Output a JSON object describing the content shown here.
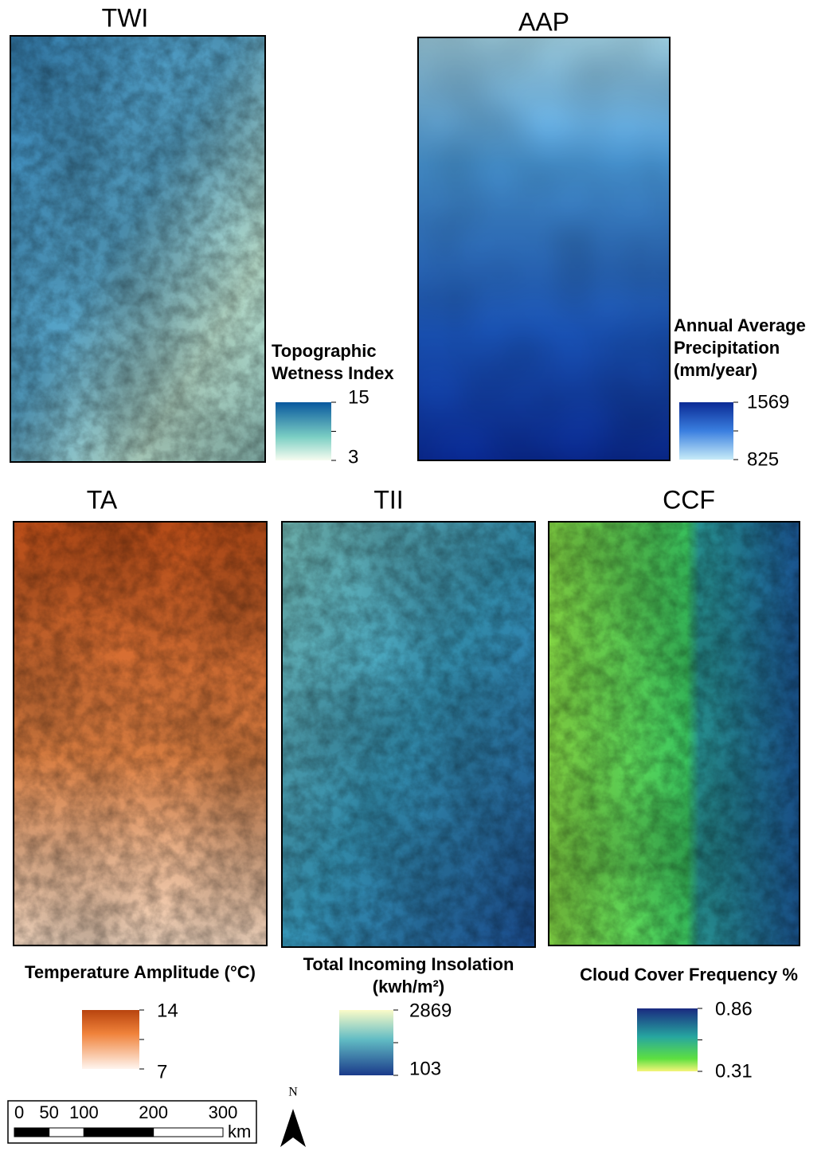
{
  "panels": [
    {
      "title": "TWI",
      "legend_title": [
        "Topographic",
        "Wetness Index"
      ],
      "legend_max": 15,
      "legend_min": 3
    },
    {
      "title": "AAP",
      "legend_title": [
        "Annual Average",
        "Precipitation",
        "(mm/year)"
      ],
      "legend_max": 1569,
      "legend_min": 825
    },
    {
      "title": "TA",
      "legend_title": [
        "Temperature Amplitude (°C)"
      ],
      "legend_max": 14,
      "legend_min": 7
    },
    {
      "title": "TII",
      "legend_title": [
        "Total Incoming Insolation",
        "(kwh/m²)"
      ],
      "legend_max": 2869,
      "legend_min": 103
    },
    {
      "title": "CCF",
      "legend_title": [
        "Cloud Cover Frequency %"
      ],
      "legend_max": 0.86,
      "legend_min": 0.31
    }
  ],
  "scale_bar": {
    "ticks": [
      0,
      50,
      100,
      200,
      300
    ],
    "unit": "km"
  },
  "north_arrow": "N"
}
